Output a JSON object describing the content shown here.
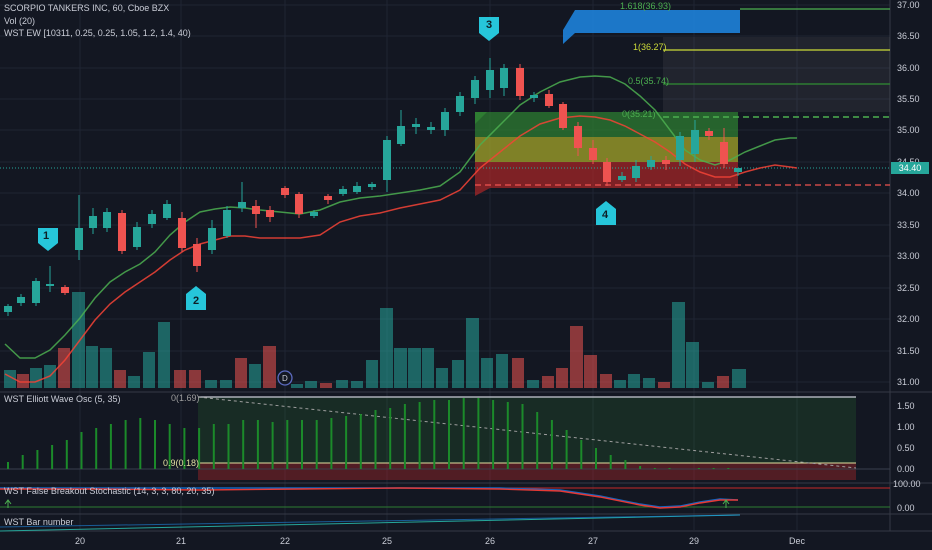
{
  "header": {
    "symbol": "SCORPIO TANKERS INC, 60, Cboe BZX",
    "volume": "Vol (20)",
    "ew": "WST EW [10311, 0.25, 0.25, 1.05, 1.2, 1.4, 40)"
  },
  "price_axis": {
    "ticks": [
      "37.00",
      "36.50",
      "36.00",
      "35.50",
      "35.00",
      "34.50",
      "34.00",
      "33.50",
      "33.00",
      "32.50",
      "32.00",
      "31.50",
      "31.00"
    ],
    "last_price": "34.40",
    "last_price_color": "#26a69a"
  },
  "fib": {
    "f1618": "1.618(36.93)",
    "f1": "1(36.27)",
    "f05": "0.5(35.74)",
    "f0": "0(35.21)"
  },
  "waves": [
    "1",
    "2",
    "3",
    "4"
  ],
  "events_marker": "D",
  "osc_panel": {
    "title": "WST Elliott Wave Osc (5, 35)",
    "top_label": "0(1.69)",
    "level_label": "0.9(0.18)",
    "ticks": [
      "1.50",
      "1.00",
      "0.50",
      "0.00"
    ]
  },
  "stoch_panel": {
    "title": "WST False Breakout Stochastic (14, 3, 3, 80, 20, 35)",
    "ticks": [
      "100.00",
      "0.00"
    ]
  },
  "bar_panel": {
    "title": "WST Bar number"
  },
  "time_axis": {
    "labels": [
      "20",
      "21",
      "22",
      "25",
      "26",
      "27",
      "29",
      "Dec"
    ]
  },
  "colors": {
    "bg": "#131722",
    "up": "#26a69a",
    "down": "#ef5350",
    "accent": "#1e88e5"
  }
}
